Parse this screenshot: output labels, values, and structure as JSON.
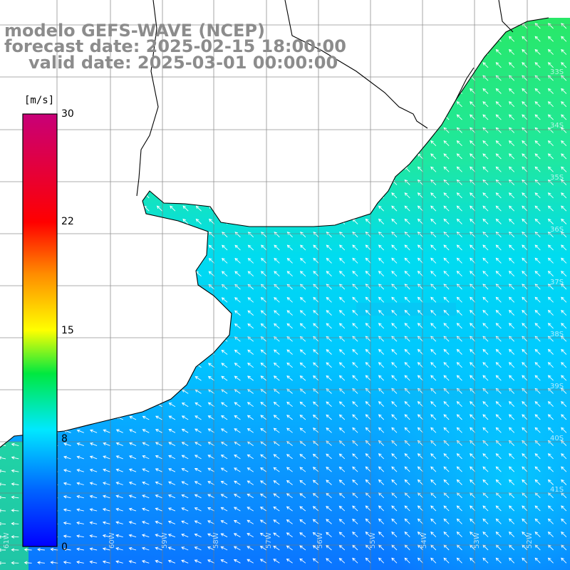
{
  "title": {
    "line1": "modelo GEFS-WAVE (NCEP)",
    "line2": "forecast date: 2025-02-15 18:00:00",
    "line3": "valid date: 2025-03-01 00:00:00"
  },
  "colorbar": {
    "unit": "[m/s]",
    "ticks": [
      "30",
      "22",
      "15",
      "8",
      "0"
    ],
    "min": 0,
    "max": 30
  },
  "map": {
    "lon_labels": [
      "61W",
      "60W",
      "59W",
      "58W",
      "57W",
      "56W",
      "55W",
      "54W",
      "53W",
      "52W",
      "51W"
    ],
    "lat_labels": [
      "33S",
      "34S",
      "35S",
      "36S",
      "37S",
      "38S",
      "39S",
      "40S",
      "41S"
    ],
    "gridlines": true,
    "field": "wind speed",
    "colors": {
      "ocean_north": "#22e870",
      "ocean_mid": "#00d8f0",
      "ocean_south": "#0a78ff",
      "land": "#ffffff",
      "coast": "#000000",
      "arrow": "#ffffff"
    }
  }
}
